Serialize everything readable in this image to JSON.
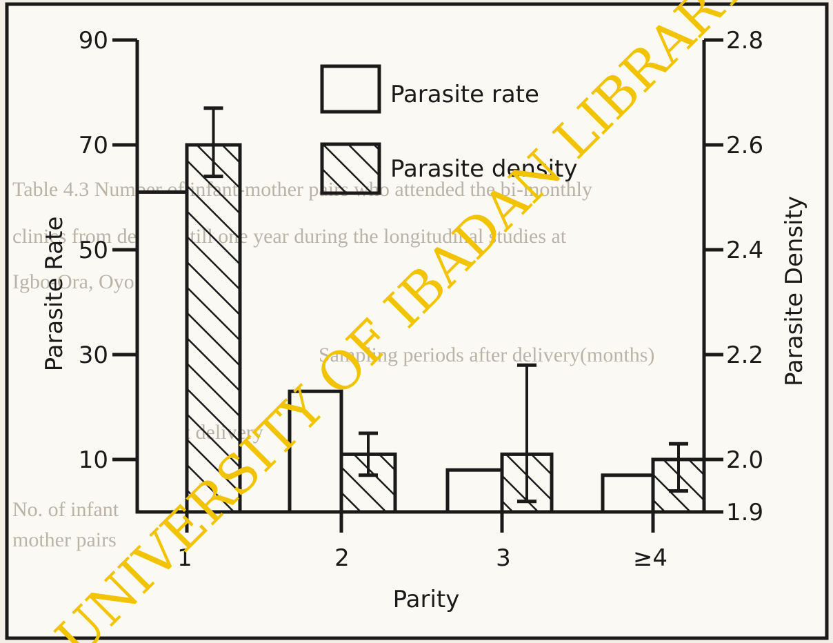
{
  "watermark": "UNIVERSITY OF IBADAN LIBRARY",
  "bleed_through": {
    "table_title": "Table 4.3    Number of infant-mother pairs who attended the bi-monthly",
    "table_title_2": "clinics from delivery till one year during the longitudinal studies at",
    "table_title_3": "Igbo-Ora, Oyo State",
    "column_header": "Sampling periods after delivery(months)",
    "row_label": "At delivery",
    "row_label_2": "No. of infant",
    "row_label_3": "mother pairs"
  },
  "chart_data": {
    "type": "bar",
    "categories": [
      "1",
      "2",
      "3",
      "≥4"
    ],
    "xlabel": "Parity",
    "ylabel": "Parasite Rate",
    "ylabel_right": "Parasite Density",
    "ylim": [
      0,
      90
    ],
    "ylim_right": [
      1.9,
      2.8
    ],
    "yticks": [
      "10",
      "30",
      "50",
      "70",
      "90"
    ],
    "yticks_right": [
      "1.9",
      "2.0",
      "2.2",
      "2.4",
      "2.6",
      "2.8"
    ],
    "legend_position": "top-center",
    "grid": false,
    "series": [
      {
        "name": "Parasite rate",
        "axis": "left",
        "fill": "open",
        "values": [
          61,
          23,
          8,
          7
        ]
      },
      {
        "name": "Parasite density",
        "axis": "right",
        "fill": "hatched",
        "values": [
          2.6,
          2.01,
          2.01,
          2.0
        ],
        "error_upper": [
          2.67,
          2.05,
          2.18,
          2.03
        ],
        "error_lower": [
          2.54,
          1.97,
          1.92,
          1.94
        ]
      }
    ]
  }
}
